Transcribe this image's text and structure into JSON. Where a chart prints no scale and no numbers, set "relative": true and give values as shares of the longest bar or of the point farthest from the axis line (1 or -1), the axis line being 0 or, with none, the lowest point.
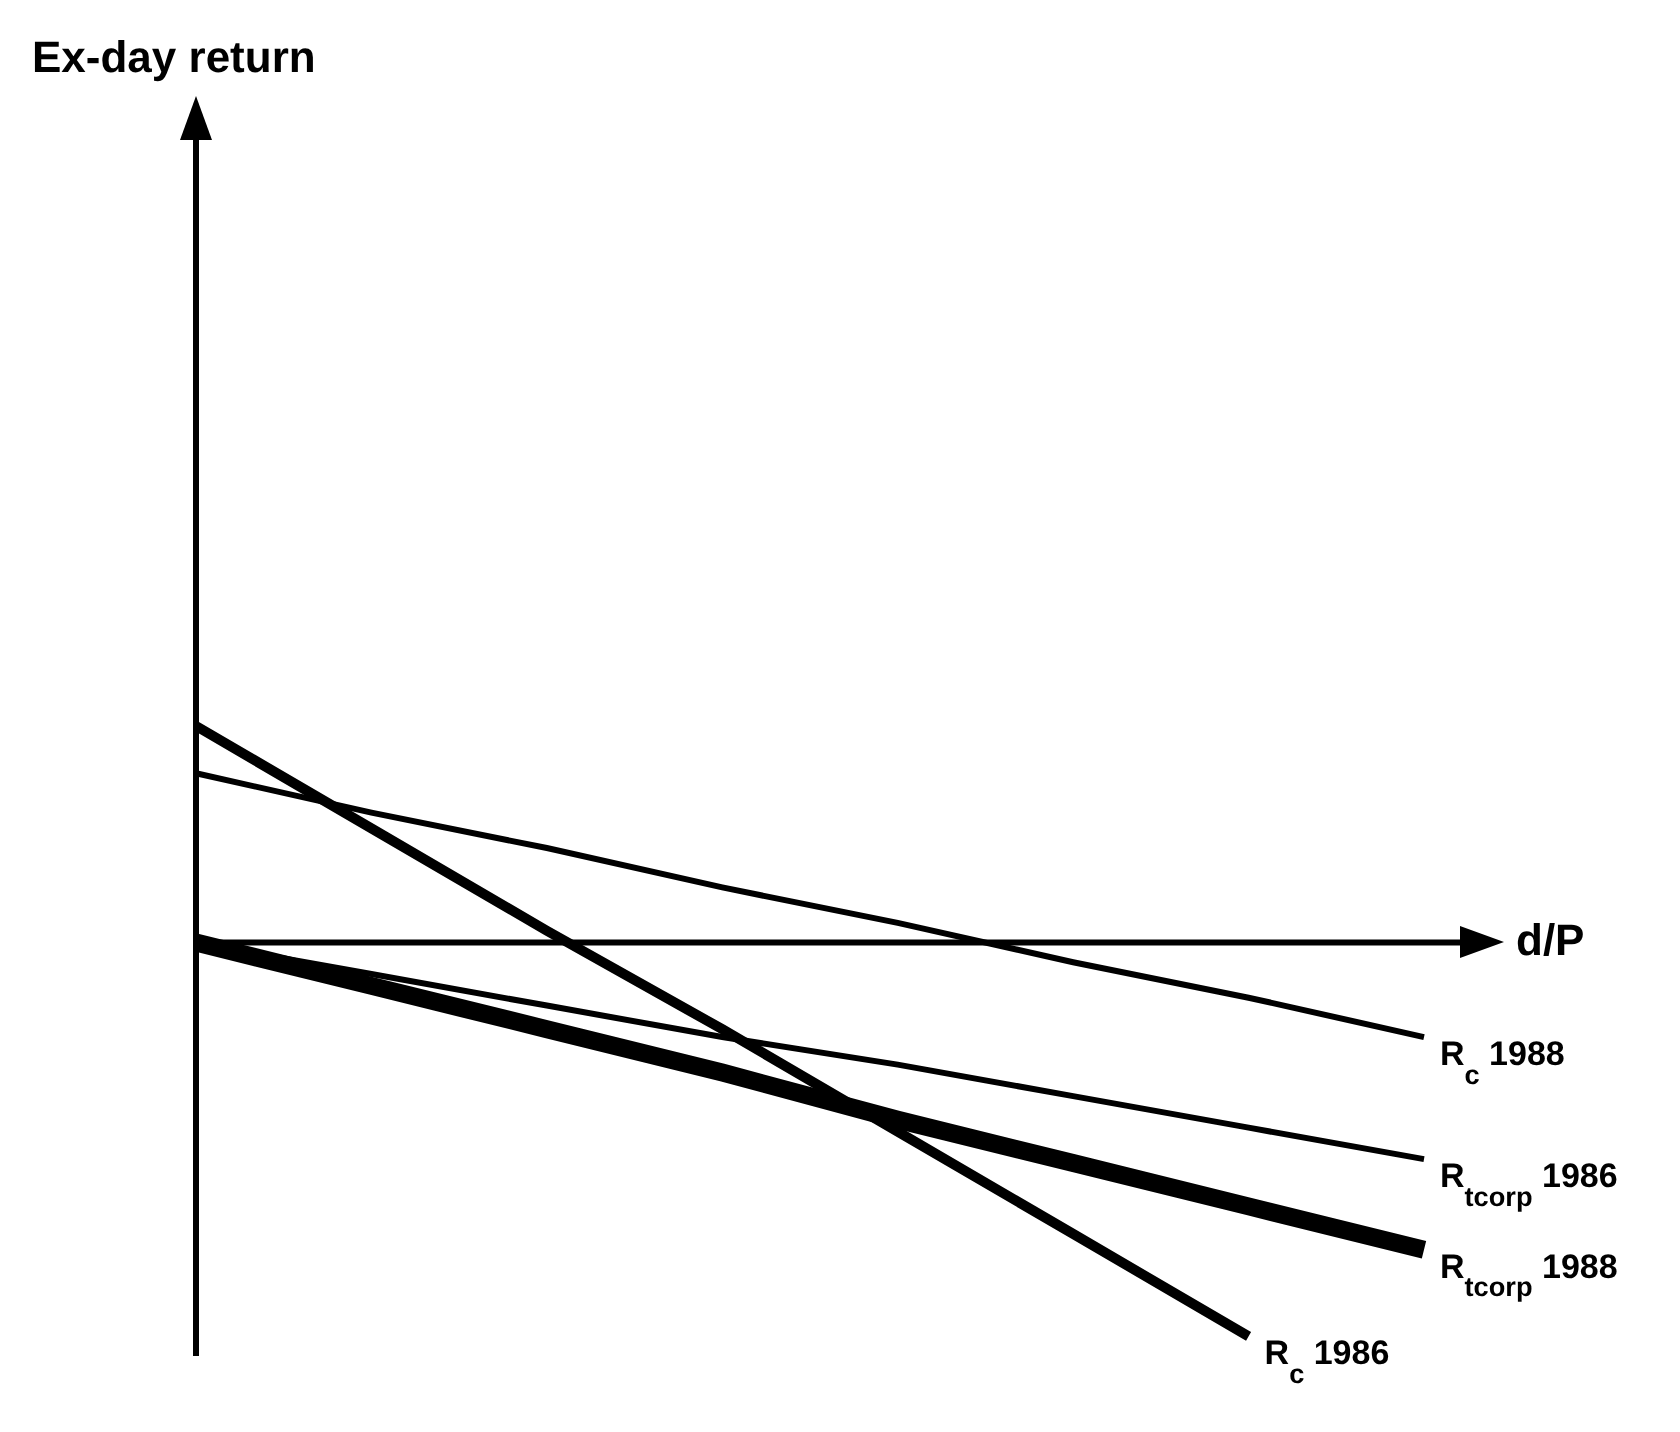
{
  "chart_data": {
    "type": "line",
    "relative": true,
    "xlabel": "d/P",
    "annotations": [
      "Ex-day return"
    ],
    "categories": [
      null,
      null,
      null,
      null,
      null,
      null,
      null,
      null
    ],
    "series": [
      {
        "name": "R$_{c}$ 1988",
        "color": "#000000",
        "values": [
          0.43,
          0.33,
          0.24,
          0.14,
          0.05,
          -0.05,
          -0.14,
          -0.24
        ]
      },
      {
        "name": "R$_{tcorp}$ 1986",
        "color": "#000000",
        "values": [
          0,
          -0.08,
          -0.16,
          -0.24,
          -0.31,
          -0.39,
          -0.47,
          -0.55
        ]
      },
      {
        "name": "R$_{tcorp}$ 1988",
        "color": "#000000",
        "values": [
          0,
          -0.11,
          -0.22,
          -0.33,
          -0.45,
          -0.56,
          -0.67,
          -0.78
        ]
      },
      {
        "name": "R$_{c}$ 1986",
        "color": "#000000",
        "values": [
          0.55,
          0.29,
          0.03,
          -0.22,
          -0.48,
          -0.74,
          -1,
          null
        ]
      }
    ],
    "marker": "none",
    "line_style": "solid"
  }
}
